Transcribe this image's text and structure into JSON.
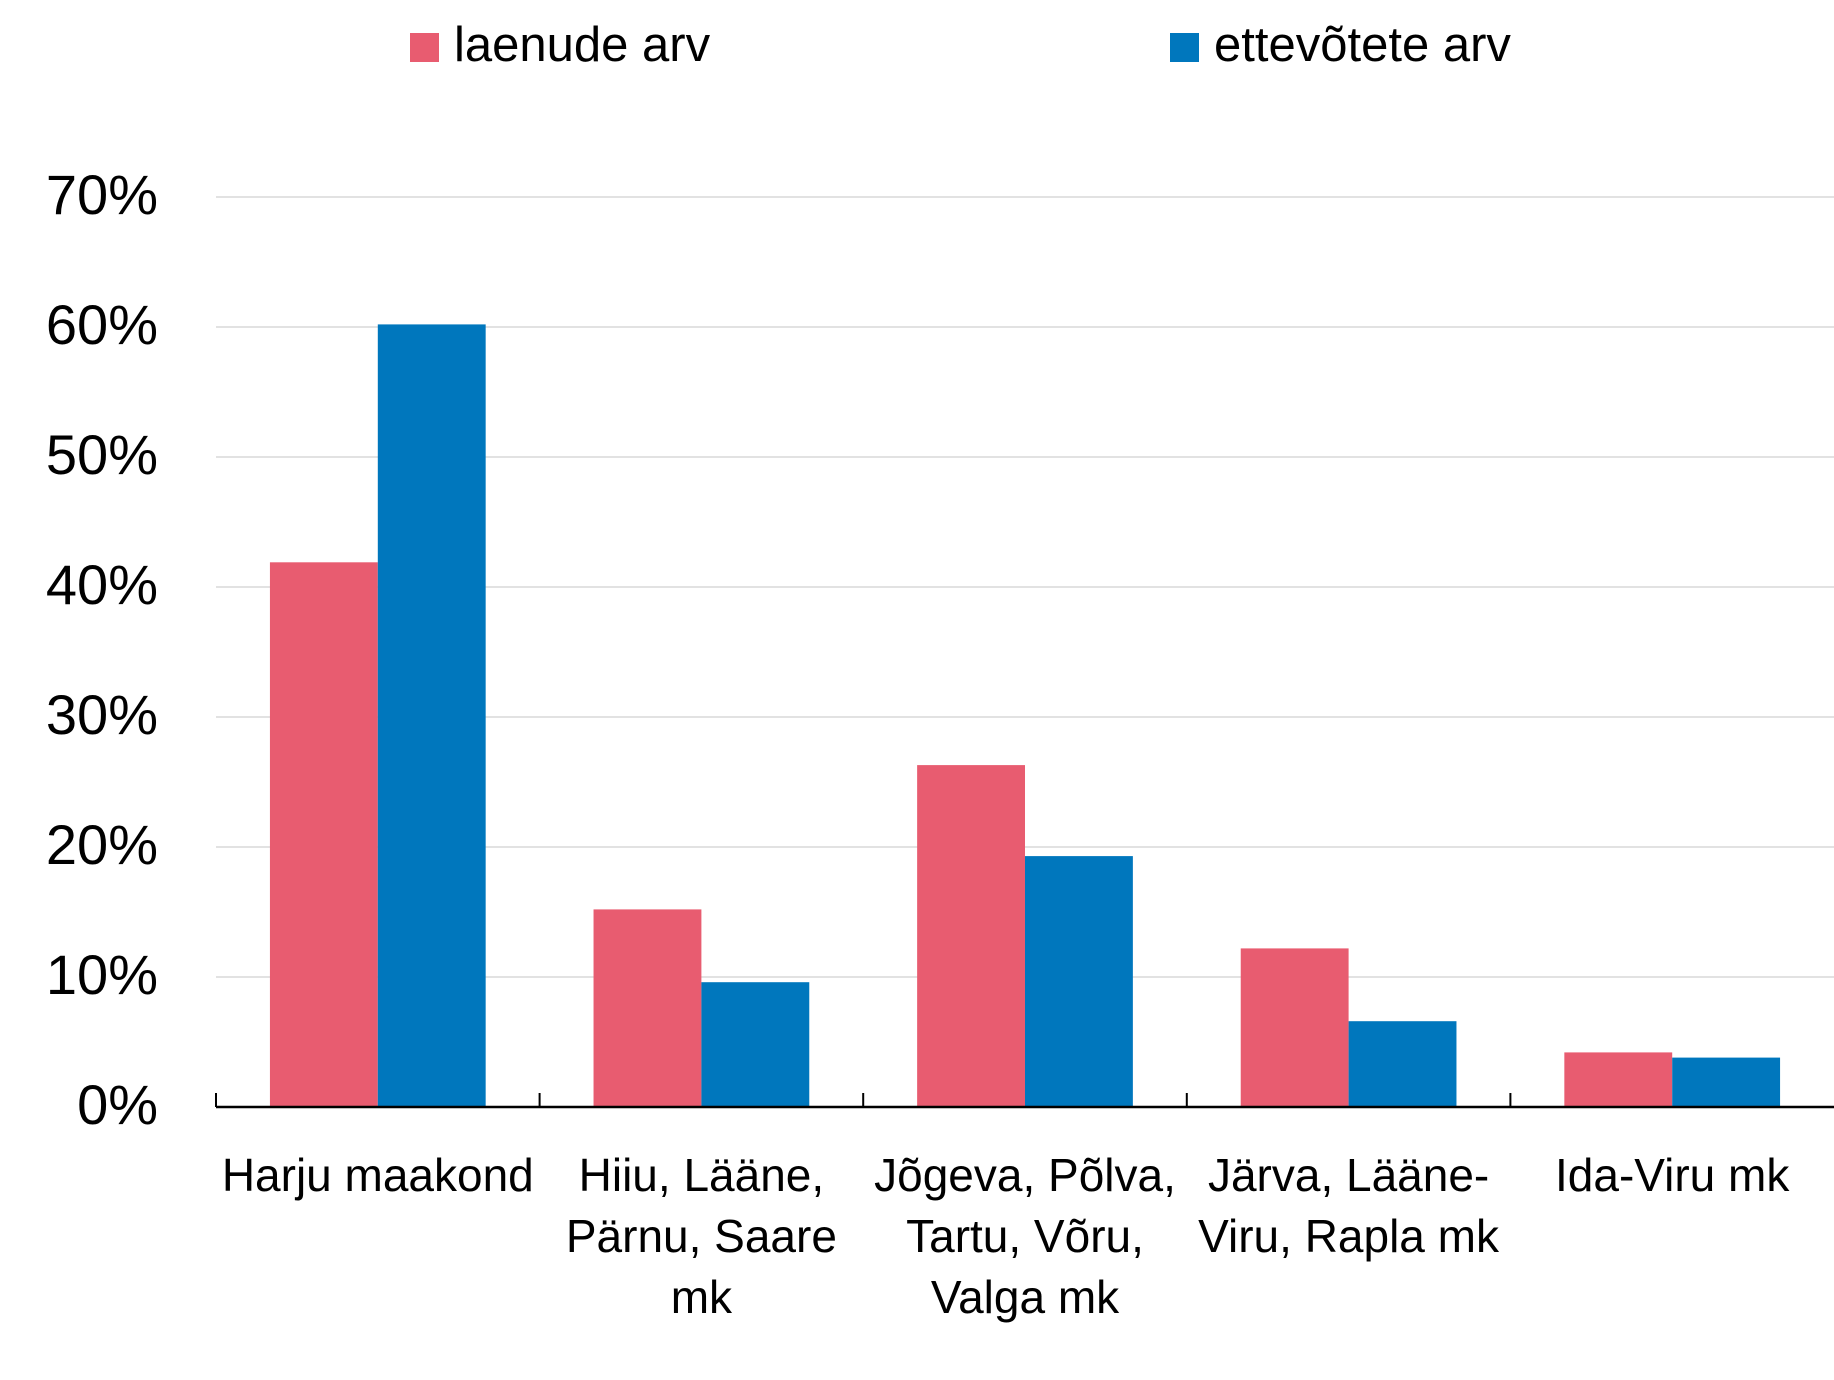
{
  "chart_data": {
    "type": "bar",
    "categories": [
      "Harju maakond",
      "Hiiu, Lääne, Pärnu, Saare mk",
      "Jõgeva, Põlva, Tartu, Võru, Valga mk",
      "Järva, Lääne-Viru, Rapla mk",
      "Ida-Viru mk"
    ],
    "series": [
      {
        "name": "laenude arv",
        "color": "#e85c70",
        "values": [
          41.9,
          15.2,
          26.3,
          12.2,
          4.2
        ]
      },
      {
        "name": "ettevõtete arv",
        "color": "#0077bd",
        "values": [
          60.2,
          9.6,
          19.3,
          6.6,
          3.8
        ]
      }
    ],
    "ylim": [
      0,
      70
    ],
    "yticks": [
      {
        "value": 0,
        "label": "0%"
      },
      {
        "value": 10,
        "label": "10%"
      },
      {
        "value": 20,
        "label": "20%"
      },
      {
        "value": 30,
        "label": "30%"
      },
      {
        "value": 40,
        "label": "40%"
      },
      {
        "value": 50,
        "label": "50%"
      },
      {
        "value": 60,
        "label": "60%"
      },
      {
        "value": 70,
        "label": "70%"
      }
    ],
    "grid": true,
    "legend": "top"
  }
}
